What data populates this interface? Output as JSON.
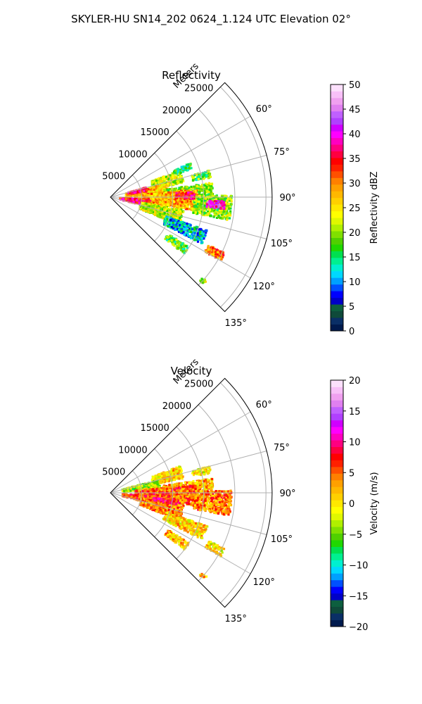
{
  "figure": {
    "title": "SKYLER-HU  SN14_202  0624_1.124 UTC Elevation 02°"
  },
  "chart_data": [
    {
      "type": "heatmap",
      "subtype": "polar-ppi-sector",
      "title": "Reflectivity",
      "radial_axis_label": "Meters",
      "r_ticks": [
        5000,
        10000,
        15000,
        20000,
        25000
      ],
      "r_tick_labels": [
        "5000",
        "10000",
        "15000",
        "20000",
        "25000"
      ],
      "rlim": [
        0,
        26000
      ],
      "theta_ticks": [
        60,
        75,
        90,
        105,
        120,
        135
      ],
      "theta_tick_labels": [
        "60°",
        "75°",
        "90°",
        "105°",
        "120°",
        "135°"
      ],
      "theta_range": [
        45,
        135
      ],
      "grid": true,
      "colorbar": {
        "label": "Reflectivity dBZ",
        "range": [
          0,
          50
        ],
        "ticks": [
          0,
          5,
          10,
          15,
          20,
          25,
          30,
          35,
          40,
          45,
          50
        ],
        "tick_labels": [
          "0",
          "5",
          "10",
          "15",
          "20",
          "25",
          "30",
          "35",
          "40",
          "45",
          "50"
        ],
        "colors": [
          "#001a4d",
          "#0a2f66",
          "#0f4a3a",
          "#0d5f3f",
          "#0000c8",
          "#0000ff",
          "#0050ff",
          "#00a0ff",
          "#00d8ff",
          "#00f0d0",
          "#00f090",
          "#00e050",
          "#20d800",
          "#50d000",
          "#80e000",
          "#b0f000",
          "#e0f800",
          "#ffff00",
          "#ffe800",
          "#ffd000",
          "#ffb800",
          "#ffa000",
          "#ff8000",
          "#ff5000",
          "#ff2000",
          "#ff0000",
          "#ff0040",
          "#ff0080",
          "#ff00c0",
          "#ff00ff",
          "#d000ff",
          "#b040ff",
          "#c060ff",
          "#e080f0",
          "#f0a0f0",
          "#f8c0f8",
          "#fce0fc"
        ]
      },
      "echo_regions": [
        {
          "az": 74,
          "r": 9500,
          "daz": 10,
          "dr": 5000,
          "value": 22
        },
        {
          "az": 82,
          "r": 6000,
          "daz": 10,
          "dr": 7000,
          "value": 27
        },
        {
          "az": 86,
          "r": 12500,
          "daz": 8,
          "dr": 8000,
          "value": 20
        },
        {
          "az": 92,
          "r": 9000,
          "daz": 14,
          "dr": 10000,
          "value": 28
        },
        {
          "az": 95,
          "r": 16500,
          "daz": 12,
          "dr": 6000,
          "value": 20
        },
        {
          "az": 99,
          "r": 4000,
          "daz": 10,
          "dr": 5000,
          "value": 35
        },
        {
          "az": 106,
          "r": 8500,
          "daz": 12,
          "dr": 7000,
          "value": 22
        },
        {
          "az": 94,
          "r": 17000,
          "daz": 4,
          "dr": 3000,
          "value": 40
        },
        {
          "az": 78,
          "r": 4500,
          "daz": 6,
          "dr": 3000,
          "value": 35
        },
        {
          "az": 89,
          "r": 12000,
          "daz": 5,
          "dr": 3000,
          "value": 35
        },
        {
          "az": 113,
          "r": 13000,
          "daz": 8,
          "dr": 7000,
          "value": 12
        },
        {
          "az": 118,
          "r": 19000,
          "daz": 4,
          "dr": 3000,
          "value": 30
        },
        {
          "az": 125,
          "r": 13000,
          "daz": 5,
          "dr": 4000,
          "value": 18
        },
        {
          "az": 77,
          "r": 15000,
          "daz": 4,
          "dr": 3000,
          "value": 18
        },
        {
          "az": 69,
          "r": 12500,
          "daz": 4,
          "dr": 3000,
          "value": 15
        },
        {
          "az": 132,
          "r": 20000,
          "daz": 2,
          "dr": 1000,
          "value": 22
        }
      ]
    },
    {
      "type": "heatmap",
      "subtype": "polar-ppi-sector",
      "title": "Velocity",
      "radial_axis_label": "Meters",
      "r_ticks": [
        5000,
        10000,
        15000,
        20000,
        25000
      ],
      "r_tick_labels": [
        "5000",
        "10000",
        "15000",
        "20000",
        "25000"
      ],
      "rlim": [
        0,
        26000
      ],
      "theta_ticks": [
        60,
        75,
        90,
        105,
        120,
        135
      ],
      "theta_tick_labels": [
        "60°",
        "75°",
        "90°",
        "105°",
        "120°",
        "135°"
      ],
      "theta_range": [
        45,
        135
      ],
      "grid": true,
      "colorbar": {
        "label": "Velocity (m/s)",
        "range": [
          -20,
          20
        ],
        "ticks": [
          -20,
          -15,
          -10,
          -5,
          0,
          5,
          10,
          15,
          20
        ],
        "tick_labels": [
          "−20",
          "−15",
          "−10",
          "−5",
          "0",
          "5",
          "10",
          "15",
          "20"
        ],
        "colors": [
          "#001a4d",
          "#0a2f66",
          "#0f4a3a",
          "#0d5f3f",
          "#0000c8",
          "#0000ff",
          "#0050ff",
          "#00a0ff",
          "#00d8ff",
          "#00f0d0",
          "#00f090",
          "#00e050",
          "#20d800",
          "#50d000",
          "#80e000",
          "#b0f000",
          "#e0f800",
          "#ffff00",
          "#ffe800",
          "#ffd000",
          "#ffb800",
          "#ffa000",
          "#ff8000",
          "#ff5000",
          "#ff2000",
          "#ff0000",
          "#ff0040",
          "#ff0080",
          "#ff00c0",
          "#ff00ff",
          "#d000ff",
          "#b040ff",
          "#c060ff",
          "#e080f0",
          "#f0a0f0",
          "#f8c0f8",
          "#fce0fc"
        ]
      },
      "echo_regions": [
        {
          "az": 74,
          "r": 9500,
          "daz": 10,
          "dr": 5000,
          "value": 1
        },
        {
          "az": 80,
          "r": 5000,
          "daz": 10,
          "dr": 6000,
          "value": -3
        },
        {
          "az": 86,
          "r": 12500,
          "daz": 8,
          "dr": 8000,
          "value": 2
        },
        {
          "az": 92,
          "r": 9000,
          "daz": 14,
          "dr": 10000,
          "value": 5
        },
        {
          "az": 95,
          "r": 16500,
          "daz": 12,
          "dr": 6000,
          "value": 4
        },
        {
          "az": 100,
          "r": 5000,
          "daz": 10,
          "dr": 6000,
          "value": 6
        },
        {
          "az": 106,
          "r": 8500,
          "daz": 12,
          "dr": 7000,
          "value": 4
        },
        {
          "az": 98,
          "r": 9000,
          "daz": 4,
          "dr": 4000,
          "value": 8
        },
        {
          "az": 113,
          "r": 13000,
          "daz": 8,
          "dr": 7000,
          "value": 1
        },
        {
          "az": 118,
          "r": 19000,
          "daz": 4,
          "dr": 3000,
          "value": 0
        },
        {
          "az": 125,
          "r": 13000,
          "daz": 5,
          "dr": 4000,
          "value": 2
        },
        {
          "az": 77,
          "r": 15000,
          "daz": 4,
          "dr": 3000,
          "value": 0
        },
        {
          "az": 132,
          "r": 20000,
          "daz": 2,
          "dr": 1000,
          "value": 2
        }
      ]
    }
  ]
}
